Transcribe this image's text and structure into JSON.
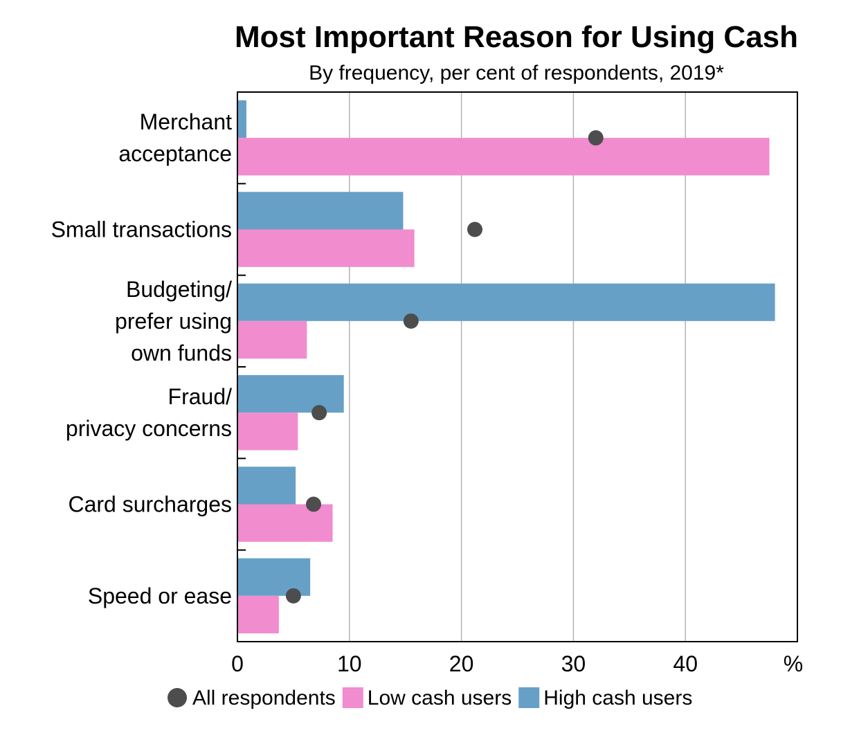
{
  "chart_data": {
    "type": "bar",
    "orientation": "horizontal",
    "title": "Most Important Reason for Using Cash",
    "subtitle": "By frequency, per cent of respondents, 2019*",
    "x_unit": "%",
    "xlim": [
      0,
      50
    ],
    "xticks": [
      0,
      10,
      20,
      30,
      40
    ],
    "grid": true,
    "legend_position": "bottom",
    "categories": [
      "Merchant\nacceptance",
      "Small transactions",
      "Budgeting/\nprefer using\nown funds",
      "Fraud/\nprivacy concerns",
      "Card surcharges",
      "Speed or ease"
    ],
    "series": [
      {
        "name": "High cash users",
        "kind": "bar",
        "color": "#67a0c7",
        "values": [
          0.8,
          14.8,
          48.0,
          9.5,
          5.2,
          6.5
        ]
      },
      {
        "name": "Low cash users",
        "kind": "bar",
        "color": "#f18ccf",
        "values": [
          47.5,
          15.8,
          6.2,
          5.4,
          8.5,
          3.7
        ]
      },
      {
        "name": "All respondents",
        "kind": "dot",
        "color": "#4d4d4d",
        "values": [
          32.0,
          21.2,
          15.5,
          7.3,
          6.8,
          5.0
        ]
      }
    ],
    "legend": [
      {
        "name": "All respondents",
        "kind": "dot",
        "color": "#4d4d4d"
      },
      {
        "name": "Low cash users",
        "kind": "bar",
        "color": "#f18ccf"
      },
      {
        "name": "High cash users",
        "kind": "bar",
        "color": "#67a0c7"
      }
    ]
  }
}
